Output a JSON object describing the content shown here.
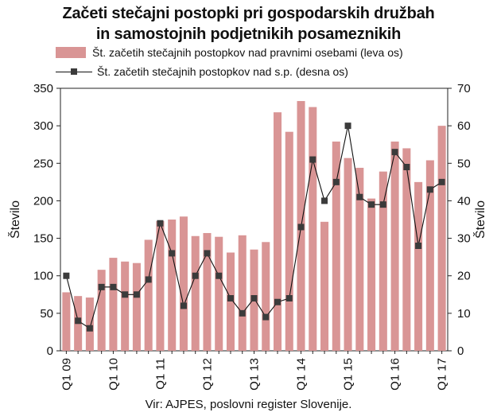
{
  "chart_data": {
    "type": "bar+line",
    "title_line1": "Začeti stečajni postopki pri gospodarskih družbah",
    "title_line2": "in samostojnih podjetnikih posameznikih",
    "legend": {
      "bar_label": "Št. začetih stečajnih postopkov nad pravnimi osebami (leva os)",
      "line_label": "Št. začetih stečajnih postopkov nad s.p. (desna os)",
      "bar_color": "#d99595",
      "line_color": "#111111",
      "marker_color": "#3b3b3b"
    },
    "source": "Vir: AJPES, poslovni register Slovenije.",
    "ylabel_left": "Število",
    "ylabel_right": "Število",
    "ylim_left": [
      0,
      350
    ],
    "ylim_right": [
      0,
      70
    ],
    "yticks_left": [
      0,
      50,
      100,
      150,
      200,
      250,
      300,
      350
    ],
    "yticks_right": [
      0,
      10,
      20,
      30,
      40,
      50,
      60,
      70
    ],
    "xtick_labels": [
      {
        "index": 0,
        "label": "Q1 09"
      },
      {
        "index": 4,
        "label": "Q1 10"
      },
      {
        "index": 8,
        "label": "Q1 11"
      },
      {
        "index": 12,
        "label": "Q1 12"
      },
      {
        "index": 16,
        "label": "Q1 13"
      },
      {
        "index": 20,
        "label": "Q1 14"
      },
      {
        "index": 24,
        "label": "Q1 15"
      },
      {
        "index": 28,
        "label": "Q1 16"
      },
      {
        "index": 32,
        "label": "Q1 17"
      }
    ],
    "series": [
      {
        "name": "Št. začetih stečajnih postopkov nad pravnimi osebami (leva os)",
        "axis": "left",
        "type": "bar",
        "values": [
          78,
          73,
          71,
          108,
          124,
          119,
          117,
          148,
          173,
          175,
          179,
          153,
          157,
          152,
          131,
          154,
          135,
          145,
          318,
          292,
          333,
          325,
          172,
          279,
          257,
          244,
          203,
          239,
          279,
          270,
          225,
          254,
          300
        ]
      },
      {
        "name": "Št. začetih stečajnih postopkov nad s.p. (desna os)",
        "axis": "right",
        "type": "line",
        "values": [
          20,
          8,
          6,
          17,
          17,
          15,
          15,
          19,
          34,
          26,
          12,
          20,
          26,
          20,
          14,
          10,
          14,
          9,
          13,
          14,
          33,
          51,
          40,
          45,
          60,
          41,
          39,
          39,
          53,
          49,
          28,
          43,
          45
        ]
      }
    ]
  }
}
